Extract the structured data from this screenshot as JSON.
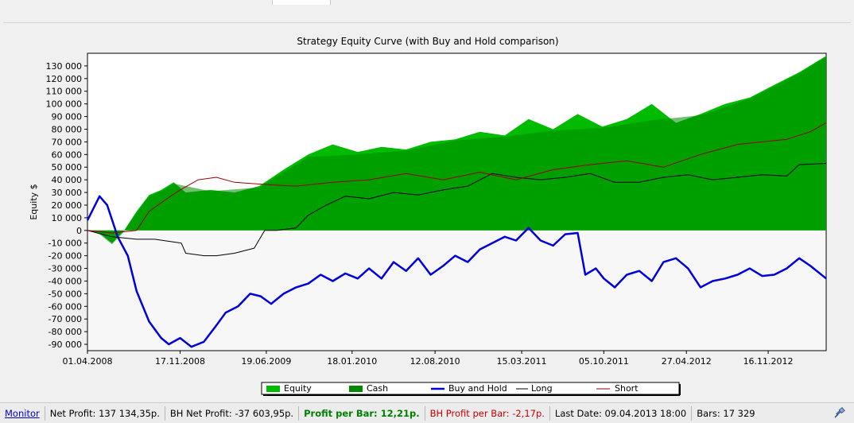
{
  "chart_data": {
    "type": "area",
    "title": "Strategy Equity Curve (with Buy and Hold comparison)",
    "ylabel": "Equity $",
    "xlabel": "",
    "ylim": [
      -95000,
      140000
    ],
    "yticks": [
      130000,
      120000,
      110000,
      100000,
      90000,
      80000,
      70000,
      60000,
      50000,
      40000,
      30000,
      20000,
      10000,
      0,
      -10000,
      -20000,
      -30000,
      -40000,
      -50000,
      -60000,
      -70000,
      -80000,
      -90000
    ],
    "ytick_labels": [
      "130 000",
      "120 000",
      "110 000",
      "100 000",
      "90 000",
      "80 000",
      "70 000",
      "60 000",
      "50 000",
      "40 000",
      "30 000",
      "20 000",
      "10 000",
      "0",
      "-10 000",
      "-20 000",
      "-30 000",
      "-40 000",
      "-50 000",
      "-60 000",
      "-70 000",
      "-80 000",
      "-90 000"
    ],
    "xlim": [
      "2008-04-01",
      "2013-04-09"
    ],
    "xticks": [
      "2008-04-01",
      "2008-11-17",
      "2009-06-19",
      "2010-01-18",
      "2010-08-12",
      "2011-03-15",
      "2011-10-05",
      "2012-04-27",
      "2012-11-16"
    ],
    "xtick_labels": [
      "01.04.2008",
      "17.11.2008",
      "19.06.2009",
      "18.01.2010",
      "12.08.2010",
      "15.03.2011",
      "05.10.2011",
      "27.04.2012",
      "16.11.2012"
    ],
    "grid": false,
    "legend_position": "bottom-center",
    "series": [
      {
        "name": "Equity",
        "kind": "area",
        "color": "#00bb00",
        "x": [
          "2008-04-01",
          "2008-05-01",
          "2008-06-01",
          "2008-07-01",
          "2008-08-01",
          "2008-09-01",
          "2008-10-01",
          "2008-11-01",
          "2008-12-01",
          "2009-02-01",
          "2009-04-01",
          "2009-06-01",
          "2009-08-01",
          "2009-10-01",
          "2009-12-01",
          "2010-02-01",
          "2010-04-01",
          "2010-06-01",
          "2010-08-01",
          "2010-10-01",
          "2010-12-01",
          "2011-02-01",
          "2011-04-01",
          "2011-06-01",
          "2011-08-01",
          "2011-10-01",
          "2011-12-01",
          "2012-02-01",
          "2012-04-01",
          "2012-06-01",
          "2012-08-01",
          "2012-10-01",
          "2012-12-01",
          "2013-02-01",
          "2013-04-09"
        ],
        "values": [
          0,
          -2000,
          -10000,
          0,
          15000,
          28000,
          32000,
          38000,
          30000,
          32000,
          30000,
          35000,
          48000,
          60000,
          68000,
          62000,
          66000,
          64000,
          70000,
          72000,
          78000,
          75000,
          88000,
          80000,
          92000,
          82000,
          88000,
          100000,
          85000,
          92000,
          100000,
          105000,
          115000,
          125000,
          138000
        ]
      },
      {
        "name": "Cash",
        "kind": "area",
        "color": "#008800",
        "x": [
          "2008-04-01",
          "2008-05-01",
          "2008-06-01",
          "2008-07-01",
          "2008-08-01",
          "2008-09-01",
          "2008-10-01",
          "2008-11-01",
          "2009-02-01",
          "2009-06-01",
          "2009-10-01",
          "2010-02-01",
          "2010-06-01",
          "2010-10-01",
          "2011-02-01",
          "2011-06-01",
          "2011-10-01",
          "2012-02-01",
          "2012-06-01",
          "2012-10-01",
          "2013-02-01",
          "2013-04-09"
        ],
        "values": [
          0,
          -3000,
          -11000,
          -1000,
          14000,
          27000,
          31000,
          37000,
          31000,
          34000,
          58000,
          60000,
          63000,
          71000,
          74000,
          79000,
          81000,
          87000,
          91000,
          104000,
          124000,
          137000
        ]
      },
      {
        "name": "Buy and Hold",
        "kind": "line",
        "color": "#0000dd",
        "x": [
          "2008-04-01",
          "2008-05-01",
          "2008-05-20",
          "2008-06-15",
          "2008-07-10",
          "2008-08-01",
          "2008-09-01",
          "2008-10-01",
          "2008-10-20",
          "2008-11-17",
          "2008-12-15",
          "2009-01-15",
          "2009-02-15",
          "2009-03-10",
          "2009-04-10",
          "2009-05-10",
          "2009-06-05",
          "2009-07-01",
          "2009-08-01",
          "2009-09-01",
          "2009-10-01",
          "2009-11-01",
          "2009-12-01",
          "2010-01-01",
          "2010-02-01",
          "2010-03-01",
          "2010-04-01",
          "2010-05-01",
          "2010-06-01",
          "2010-07-01",
          "2010-08-01",
          "2010-09-01",
          "2010-10-01",
          "2010-11-01",
          "2010-12-01",
          "2011-01-01",
          "2011-02-01",
          "2011-03-01",
          "2011-04-01",
          "2011-05-01",
          "2011-06-01",
          "2011-07-01",
          "2011-08-01",
          "2011-08-20",
          "2011-09-15",
          "2011-10-05",
          "2011-11-01",
          "2011-12-01",
          "2012-01-01",
          "2012-02-01",
          "2012-03-01",
          "2012-04-01",
          "2012-05-01",
          "2012-06-01",
          "2012-07-01",
          "2012-08-01",
          "2012-09-01",
          "2012-10-01",
          "2012-11-01",
          "2012-12-01",
          "2013-01-01",
          "2013-02-01",
          "2013-03-01",
          "2013-04-09"
        ],
        "values": [
          8000,
          27000,
          20000,
          -5000,
          -20000,
          -48000,
          -72000,
          -85000,
          -90000,
          -85000,
          -92000,
          -88000,
          -75000,
          -65000,
          -60000,
          -50000,
          -52000,
          -58000,
          -50000,
          -45000,
          -42000,
          -35000,
          -40000,
          -34000,
          -38000,
          -30000,
          -38000,
          -25000,
          -32000,
          -22000,
          -35000,
          -28000,
          -20000,
          -25000,
          -15000,
          -10000,
          -5000,
          -8000,
          2000,
          -8000,
          -12000,
          -3000,
          -2000,
          -35000,
          -30000,
          -38000,
          -45000,
          -35000,
          -32000,
          -40000,
          -25000,
          -22000,
          -30000,
          -45000,
          -40000,
          -38000,
          -35000,
          -30000,
          -36000,
          -35000,
          -30000,
          -22000,
          -28000,
          -38000
        ]
      },
      {
        "name": "Long",
        "kind": "line",
        "color": "#000000",
        "x": [
          "2008-04-01",
          "2008-06-01",
          "2008-08-01",
          "2008-09-15",
          "2008-11-20",
          "2008-12-01",
          "2009-01-15",
          "2009-02-15",
          "2009-04-01",
          "2009-05-20",
          "2009-06-15",
          "2009-07-15",
          "2009-09-01",
          "2009-10-01",
          "2009-11-15",
          "2010-01-01",
          "2010-03-01",
          "2010-05-01",
          "2010-07-01",
          "2010-09-01",
          "2010-11-01",
          "2011-01-01",
          "2011-03-01",
          "2011-05-01",
          "2011-07-01",
          "2011-09-01",
          "2011-11-01",
          "2012-01-01",
          "2012-03-01",
          "2012-05-01",
          "2012-07-01",
          "2012-09-01",
          "2012-11-01",
          "2013-01-01",
          "2013-02-01",
          "2013-04-09"
        ],
        "values": [
          0,
          -5000,
          -7000,
          -7000,
          -10000,
          -18000,
          -20000,
          -20000,
          -18000,
          -14000,
          0,
          0,
          2000,
          12000,
          20000,
          27000,
          25000,
          30000,
          28000,
          32000,
          35000,
          45000,
          42000,
          40000,
          42000,
          45000,
          38000,
          38000,
          42000,
          44000,
          40000,
          42000,
          44000,
          43000,
          52000,
          53000
        ]
      },
      {
        "name": "Short",
        "kind": "line",
        "color": "#990000",
        "x": [
          "2008-04-01",
          "2008-06-01",
          "2008-08-01",
          "2008-09-01",
          "2008-10-15",
          "2008-11-17",
          "2009-01-01",
          "2009-02-15",
          "2009-04-01",
          "2009-05-15",
          "2009-07-01",
          "2009-09-01",
          "2009-12-01",
          "2010-03-01",
          "2010-06-01",
          "2010-09-01",
          "2010-12-01",
          "2011-03-01",
          "2011-06-01",
          "2011-09-01",
          "2011-12-01",
          "2012-03-01",
          "2012-06-01",
          "2012-09-01",
          "2012-11-01",
          "2013-01-01",
          "2013-03-01",
          "2013-04-09"
        ],
        "values": [
          0,
          -2000,
          0,
          15000,
          25000,
          32000,
          40000,
          42000,
          38000,
          37000,
          36000,
          35000,
          38000,
          40000,
          45000,
          40000,
          46000,
          40000,
          48000,
          52000,
          55000,
          50000,
          60000,
          68000,
          70000,
          72000,
          78000,
          85000
        ]
      }
    ]
  },
  "legend": {
    "equity": "Equity",
    "cash": "Cash",
    "buy_and_hold": "Buy and Hold",
    "long": "Long",
    "short": "Short"
  },
  "statusbar": {
    "monitor": "Monitor",
    "net_profit": "Net Profit: 137 134,35р.",
    "bh_net_profit": "BH Net Profit: -37 603,95р.",
    "profit_per_bar": "Profit per Bar: 12,21р.",
    "bh_profit_per_bar": "BH Profit per Bar: -2,17р.",
    "last_date": "Last Date: 09.04.2013 18:00",
    "bars": "Bars: 17 329",
    "tool_icon": "satellite-icon"
  }
}
